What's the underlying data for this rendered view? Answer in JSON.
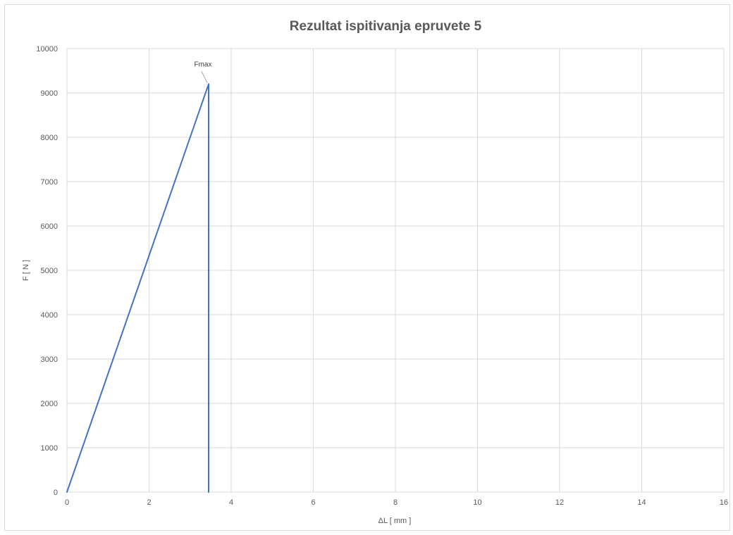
{
  "chart_data": {
    "type": "line",
    "title": "Rezultat ispitivanja epruvete 5",
    "xlabel": "ΔL [ mm ]",
    "ylabel": "F [ N ]",
    "xlim": [
      0,
      16
    ],
    "ylim": [
      0,
      10000
    ],
    "xticks": [
      "0",
      "2",
      "4",
      "6",
      "8",
      "10",
      "12",
      "14",
      "16"
    ],
    "yticks": [
      "0",
      "1000",
      "2000",
      "3000",
      "4000",
      "5000",
      "6000",
      "7000",
      "8000",
      "9000",
      "10000"
    ],
    "grid": true,
    "series": [
      {
        "x": [
          0,
          3.45,
          3.45
        ],
        "y": [
          0,
          9200,
          0
        ]
      }
    ],
    "annotations": [
      {
        "text": "Fmax",
        "x": 3.45,
        "y": 9200
      }
    ],
    "colors": {
      "line": "#4472c4",
      "grid": "#d9d9d9",
      "text": "#595959"
    }
  }
}
